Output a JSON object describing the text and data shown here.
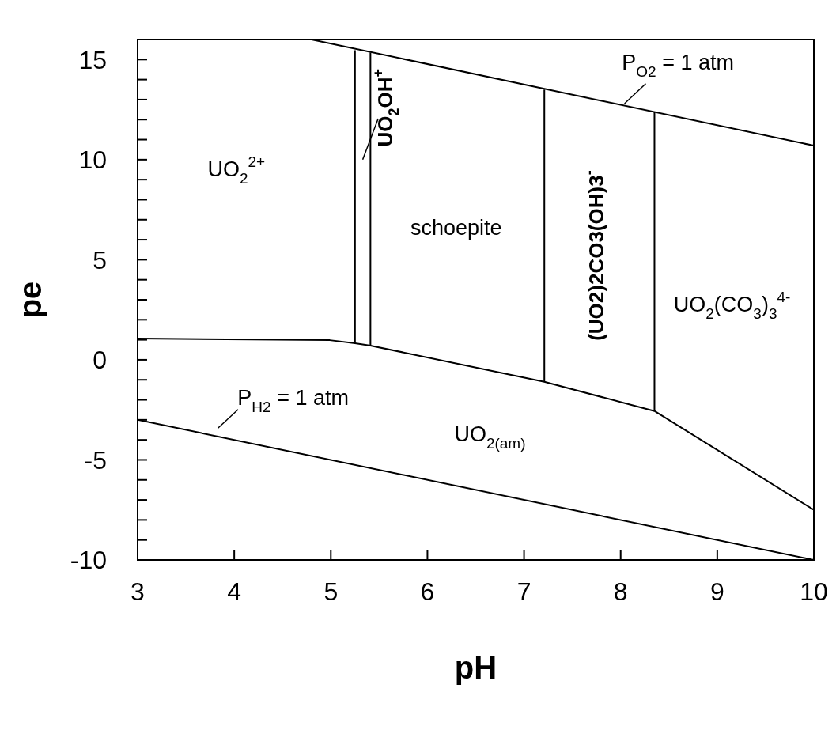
{
  "chart_data": {
    "type": "line",
    "xlabel": "pH",
    "ylabel": "pe",
    "xlim": [
      3,
      10
    ],
    "ylim": [
      -10,
      16
    ],
    "xticks": [
      3,
      4,
      5,
      6,
      7,
      8,
      9,
      10
    ],
    "yticks": [
      -10,
      {
        "value": -9,
        "label": null
      },
      {
        "value": -8,
        "label": null
      },
      {
        "value": -7,
        "label": null
      },
      {
        "value": -6,
        "label": null
      },
      -5,
      {
        "value": -4,
        "label": null
      },
      {
        "value": -3,
        "label": null
      },
      {
        "value": -2,
        "label": null
      },
      {
        "value": -1,
        "label": null
      },
      0,
      {
        "value": 1,
        "label": null
      },
      {
        "value": 2,
        "label": null
      },
      {
        "value": 3,
        "label": null
      },
      {
        "value": 4,
        "label": null
      },
      5,
      {
        "value": 6,
        "label": null
      },
      {
        "value": 7,
        "label": null
      },
      {
        "value": 8,
        "label": null
      },
      {
        "value": 9,
        "label": null
      },
      10,
      {
        "value": 11,
        "label": null
      },
      {
        "value": 12,
        "label": null
      },
      {
        "value": 13,
        "label": null
      },
      {
        "value": 14,
        "label": null
      },
      15
    ],
    "series": [
      {
        "color": "#000000",
        "x": [
          4.8,
          10
        ],
        "values": [
          16,
          10.7
        ]
      },
      {
        "color": "#000000",
        "x": [
          3,
          10
        ],
        "values": [
          -3,
          -10
        ]
      },
      {
        "color": "#000000",
        "x": [
          3,
          4.99,
          5.25,
          5.41,
          7.21,
          8.35,
          10
        ],
        "values": [
          1.06,
          0.98,
          0.83,
          0.71,
          -1.1,
          -2.56,
          -7.5
        ]
      },
      {
        "color": "#000000",
        "x": [
          5.25,
          5.25
        ],
        "values": [
          0.83,
          15.47
        ]
      },
      {
        "color": "#000000",
        "x": [
          5.41,
          5.41
        ],
        "values": [
          0.71,
          15.35
        ]
      },
      {
        "color": "#000000",
        "x": [
          7.21,
          7.21
        ],
        "values": [
          -1.1,
          13.5
        ]
      },
      {
        "color": "#000000",
        "x": [
          8.35,
          8.35
        ],
        "values": [
          -2.56,
          12.36
        ]
      }
    ],
    "annotations": [
      "UO$_{2}$$^{2+}$",
      "UO$_{2}$OH$^{+}$",
      "schoepite",
      "(UO2)2CO3(OH)3$^{-}$",
      "UO$_{2}$(CO$_{3}$)$_{3}$$^{4-}$",
      "UO$_{2(am)}$",
      "P$_{O2}$ = 1 atm",
      "P$_{H2}$ = 1 atm"
    ]
  }
}
